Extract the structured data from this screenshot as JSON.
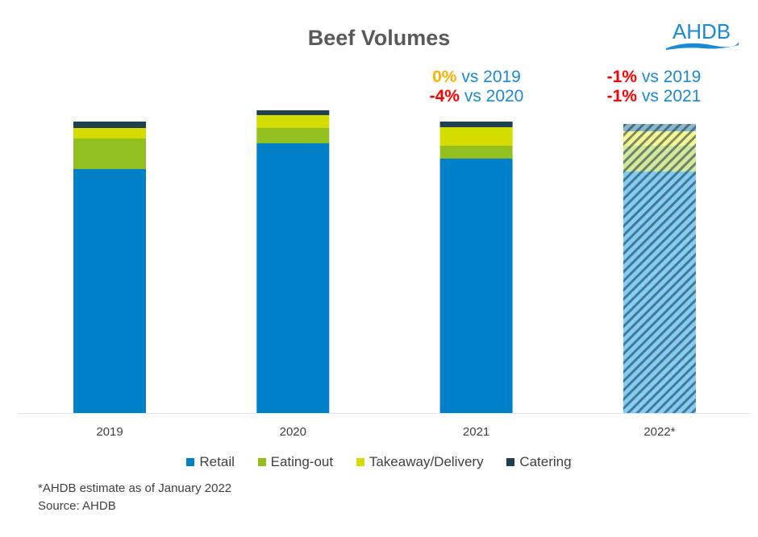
{
  "chart_data": {
    "type": "bar",
    "stacked": true,
    "title": "Beef Volumes",
    "categories": [
      "2019",
      "2020",
      "2021",
      "2022*"
    ],
    "series": [
      {
        "name": "Retail",
        "color": "#0080c8",
        "values": [
          303,
          335,
          316,
          300
        ]
      },
      {
        "name": "Eating-out",
        "color": "#93c01f",
        "values": [
          38,
          19,
          16,
          32
        ]
      },
      {
        "name": "Takeaway/Delivery",
        "color": "#d4dc00",
        "values": [
          13,
          16,
          23,
          18
        ]
      },
      {
        "name": "Catering",
        "color": "#1d4150",
        "values": [
          8,
          6,
          7,
          9
        ]
      }
    ],
    "estimated_categories": [
      "2022*"
    ],
    "estimate_style": "hatched",
    "legend_position": "bottom",
    "y_axis_shown": false,
    "grid": false,
    "annotations": [
      {
        "category": "2021",
        "lines": [
          {
            "pct": "0%",
            "pct_color": "#ffb000",
            "text": "vs 2019"
          },
          {
            "pct": "-4%",
            "pct_color": "#ff0000",
            "text": "vs 2020"
          }
        ]
      },
      {
        "category": "2022*",
        "lines": [
          {
            "pct": "-1%",
            "pct_color": "#ff0000",
            "text": "vs 2019"
          },
          {
            "pct": "-1%",
            "pct_color": "#ff0000",
            "text": "vs 2021"
          }
        ]
      }
    ]
  },
  "logo": "AHDB",
  "footnotes": [
    "*AHDB estimate as of January 2022",
    "Source: AHDB"
  ]
}
